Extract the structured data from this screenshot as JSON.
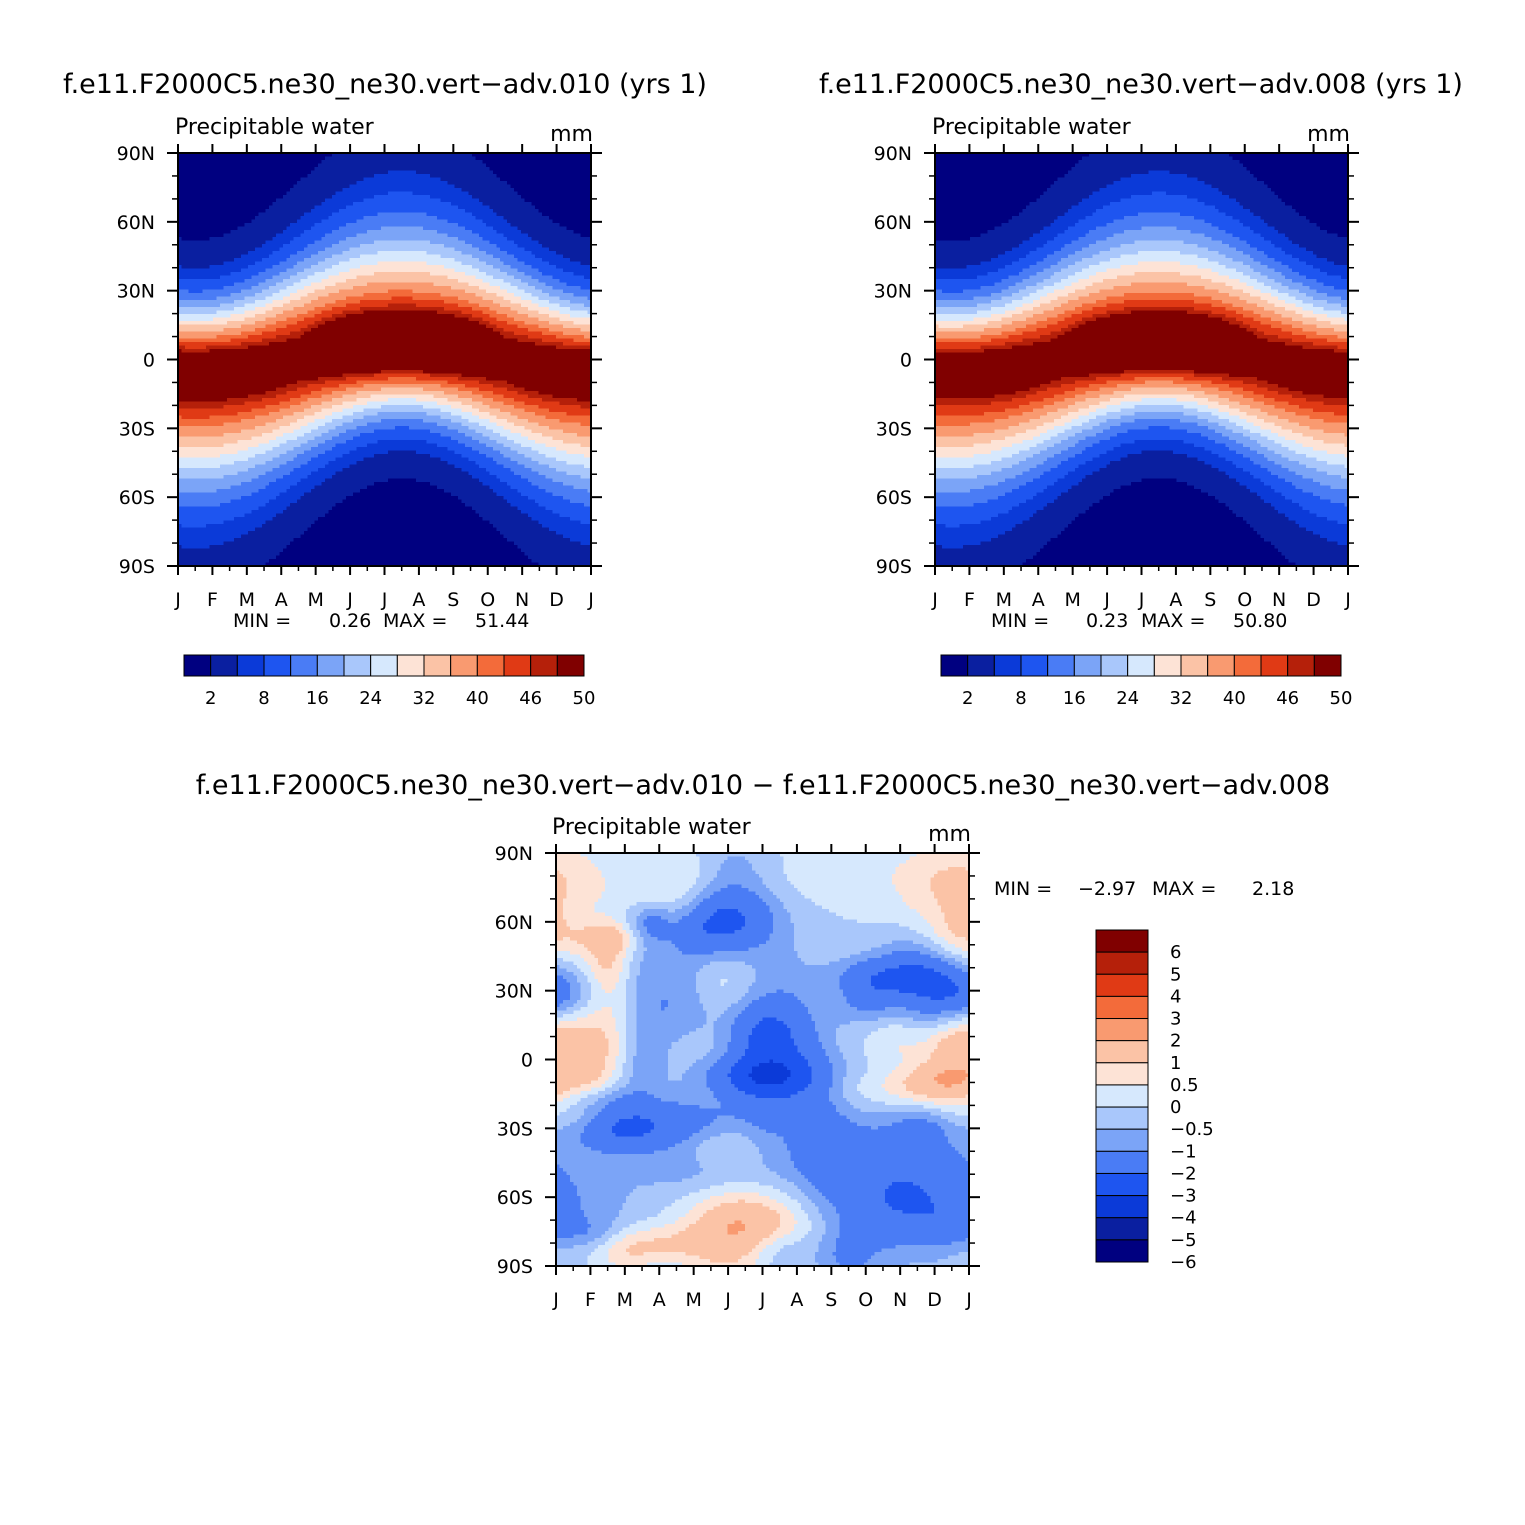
{
  "chart_data": [
    {
      "type": "heatmap",
      "id": "p1",
      "title": "f.e11.F2000C5.ne30_ne30.vert−adv.010 (yrs  1)",
      "subtitle": "Precipitable water",
      "units": "mm",
      "x_ticks": [
        "J",
        "F",
        "M",
        "A",
        "M",
        "J",
        "J",
        "A",
        "S",
        "O",
        "N",
        "D",
        "J"
      ],
      "y_ticks": [
        "90N",
        "60N",
        "30N",
        "0",
        "30S",
        "60S",
        "90S"
      ],
      "stats": {
        "min_label": "MIN =",
        "min": "0.26",
        "max_label": "MAX =",
        "max": "51.44"
      },
      "levels": [
        2,
        5,
        8,
        12,
        16,
        20,
        24,
        28,
        32,
        36,
        40,
        43,
        46,
        48,
        50
      ],
      "legend_labels": [
        "2",
        "8",
        "16",
        "24",
        "32",
        "40",
        "46",
        "50"
      ],
      "colors": [
        "#000080",
        "#0a1fa0",
        "#0b3ad8",
        "#1e55f0",
        "#4a7cf5",
        "#7ba4f7",
        "#a9c7fb",
        "#d6e8fd",
        "#fde3d6",
        "#fbc3a6",
        "#f99a70",
        "#f36b3a",
        "#e03a15",
        "#b5200a",
        "#800000"
      ],
      "field": {
        "type": "zonal_pw",
        "max_scale": 1.0
      }
    },
    {
      "type": "heatmap",
      "id": "p2",
      "title": "f.e11.F2000C5.ne30_ne30.vert−adv.008 (yrs  1)",
      "subtitle": "Precipitable water",
      "units": "mm",
      "x_ticks": [
        "J",
        "F",
        "M",
        "A",
        "M",
        "J",
        "J",
        "A",
        "S",
        "O",
        "N",
        "D",
        "J"
      ],
      "y_ticks": [
        "90N",
        "60N",
        "30N",
        "0",
        "30S",
        "60S",
        "90S"
      ],
      "stats": {
        "min_label": "MIN =",
        "min": "0.23",
        "max_label": "MAX =",
        "max": "50.80"
      },
      "levels": [
        2,
        5,
        8,
        12,
        16,
        20,
        24,
        28,
        32,
        36,
        40,
        43,
        46,
        48,
        50
      ],
      "legend_labels": [
        "2",
        "8",
        "16",
        "24",
        "32",
        "40",
        "46",
        "50"
      ],
      "colors": [
        "#000080",
        "#0a1fa0",
        "#0b3ad8",
        "#1e55f0",
        "#4a7cf5",
        "#7ba4f7",
        "#a9c7fb",
        "#d6e8fd",
        "#fde3d6",
        "#fbc3a6",
        "#f99a70",
        "#f36b3a",
        "#e03a15",
        "#b5200a",
        "#800000"
      ],
      "field": {
        "type": "zonal_pw",
        "max_scale": 0.988
      }
    },
    {
      "type": "heatmap",
      "id": "p3",
      "title": "f.e11.F2000C5.ne30_ne30.vert−adv.010 − f.e11.F2000C5.ne30_ne30.vert−adv.008",
      "subtitle": "Precipitable water",
      "units": "mm",
      "x_ticks": [
        "J",
        "F",
        "M",
        "A",
        "M",
        "J",
        "J",
        "A",
        "S",
        "O",
        "N",
        "D",
        "J"
      ],
      "y_ticks": [
        "90N",
        "60N",
        "30N",
        "0",
        "30S",
        "60S",
        "90S"
      ],
      "stats": {
        "min_label": "MIN =",
        "min": "−2.97",
        "max_label": "MAX =",
        "max": "2.18"
      },
      "levels": [
        -6,
        -5,
        -4,
        -3,
        -2,
        -1,
        -0.5,
        0,
        0.5,
        1,
        2,
        3,
        4,
        5,
        6
      ],
      "legend_labels": [
        "6",
        "5",
        "4",
        "3",
        "2",
        "1",
        "0.5",
        "0",
        "−0.5",
        "−1",
        "−2",
        "−3",
        "−4",
        "−5",
        "−6"
      ],
      "colors": [
        "#000080",
        "#0a1fa0",
        "#0b3ad8",
        "#1e55f0",
        "#4a7cf5",
        "#7ba4f7",
        "#a9c7fb",
        "#d6e8fd",
        "#fde3d6",
        "#fbc3a6",
        "#f99a70",
        "#f36b3a",
        "#e03a15",
        "#b5200a",
        "#800000"
      ],
      "field": {
        "type": "difference",
        "seed": 7
      }
    }
  ]
}
